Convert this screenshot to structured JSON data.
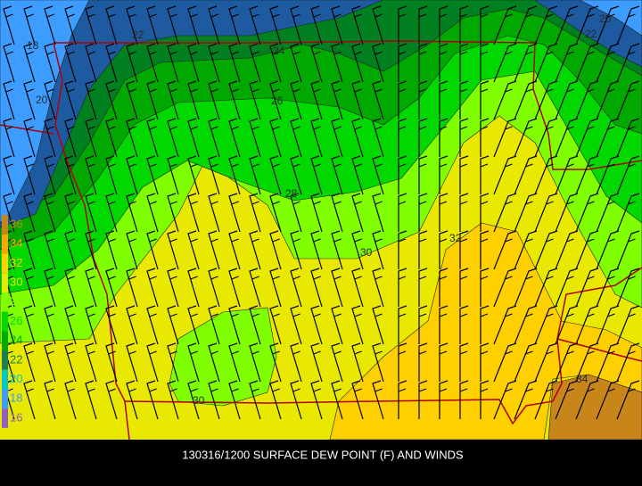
{
  "caption": "130316/1200 SURFACE DEW POINT (F) AND WINDS",
  "legend": [
    {
      "label": "36",
      "color": "#c8861a"
    },
    {
      "label": "34",
      "color": "#ffa500"
    },
    {
      "label": "32",
      "color": "#ffd000"
    },
    {
      "label": "30",
      "color": "#e8e800"
    },
    {
      "label": "28",
      "color": "#80ff00"
    },
    {
      "label": "26",
      "color": "#00d800"
    },
    {
      "label": "24",
      "color": "#00a800"
    },
    {
      "label": "22",
      "color": "#1a8050"
    },
    {
      "label": "20",
      "color": "#00c8c8"
    },
    {
      "label": "18",
      "color": "#3c9cff"
    },
    {
      "label": "16",
      "color": "#9060c0"
    }
  ],
  "contour_labels": [
    "18",
    "22",
    "24",
    "20",
    "26",
    "28",
    "30",
    "32",
    "30",
    "34",
    "20",
    "22"
  ]
}
